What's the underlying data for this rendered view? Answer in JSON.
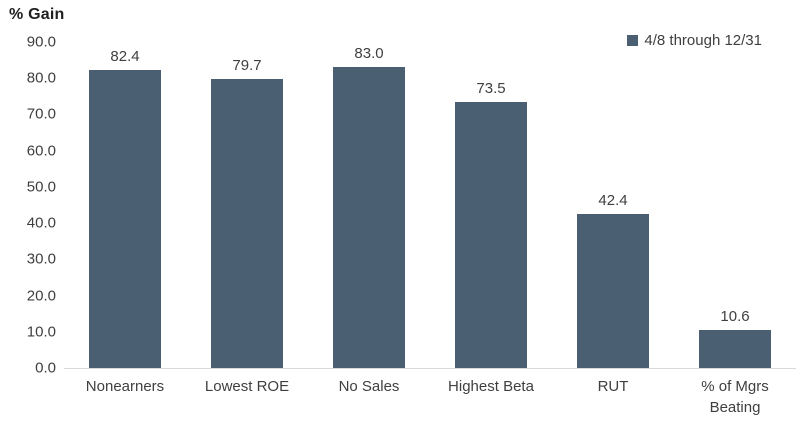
{
  "chart_data": {
    "type": "bar",
    "title": "% Gain",
    "ylabel": "% Gain",
    "xlabel": "",
    "categories": [
      "Nonearners",
      "Lowest ROE",
      "No Sales",
      "Highest Beta",
      "RUT",
      "% of Mgrs Beating"
    ],
    "series": [
      {
        "name": "4/8 through 12/31",
        "values": [
          82.4,
          79.7,
          83.0,
          73.5,
          42.4,
          10.6
        ]
      }
    ],
    "value_labels": [
      "82.4",
      "79.7",
      "83.0",
      "73.5",
      "42.4",
      "10.6"
    ],
    "ylim": [
      0,
      90
    ],
    "ytick_step": 10,
    "ytick_labels": [
      "0.0",
      "10.0",
      "20.0",
      "30.0",
      "40.0",
      "50.0",
      "60.0",
      "70.0",
      "80.0",
      "90.0"
    ],
    "grid": false,
    "legend_position": "top-right",
    "legend_label": "4/8 through 12/31",
    "colors": {
      "bar": "#4B5F72",
      "legend_swatch": "#4B5F72",
      "title_text": "#1F1F1F",
      "tick_text": "#3F3F3F",
      "value_text": "#3F3F3F",
      "axis_line": "#D9D9D9",
      "background": "#FFFFFF"
    }
  }
}
